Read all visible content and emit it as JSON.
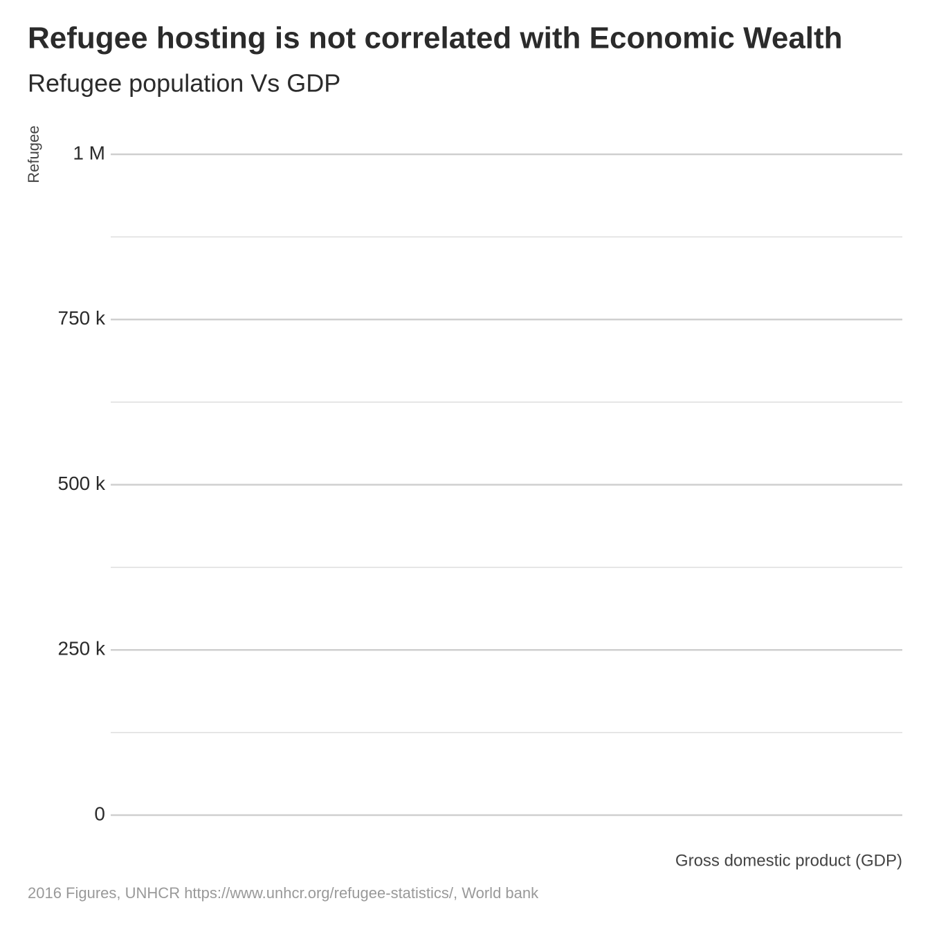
{
  "chart_data": {
    "type": "scatter",
    "title": "Refugee hosting is not correlated with Economic Wealth",
    "subtitle": "Refugee population Vs GDP",
    "y_label": "Refugee",
    "x_label": "Gross domestic product (GDP)",
    "caption": "2016 Figures, UNHCR https://www.unhcr.org/refugee-statistics/, World bank",
    "ylim": [
      0,
      1000000
    ],
    "yticks": [
      0,
      {
        "value": 250000,
        "label": "250 k"
      },
      {
        "value": 500000,
        "label": "500 k"
      },
      {
        "value": 750000,
        "label": "750 k"
      },
      {
        "value": 1000000,
        "label": "1 M"
      }
    ],
    "minor_yticks": [
      125000,
      375000,
      625000,
      875000
    ],
    "grid": true
  }
}
